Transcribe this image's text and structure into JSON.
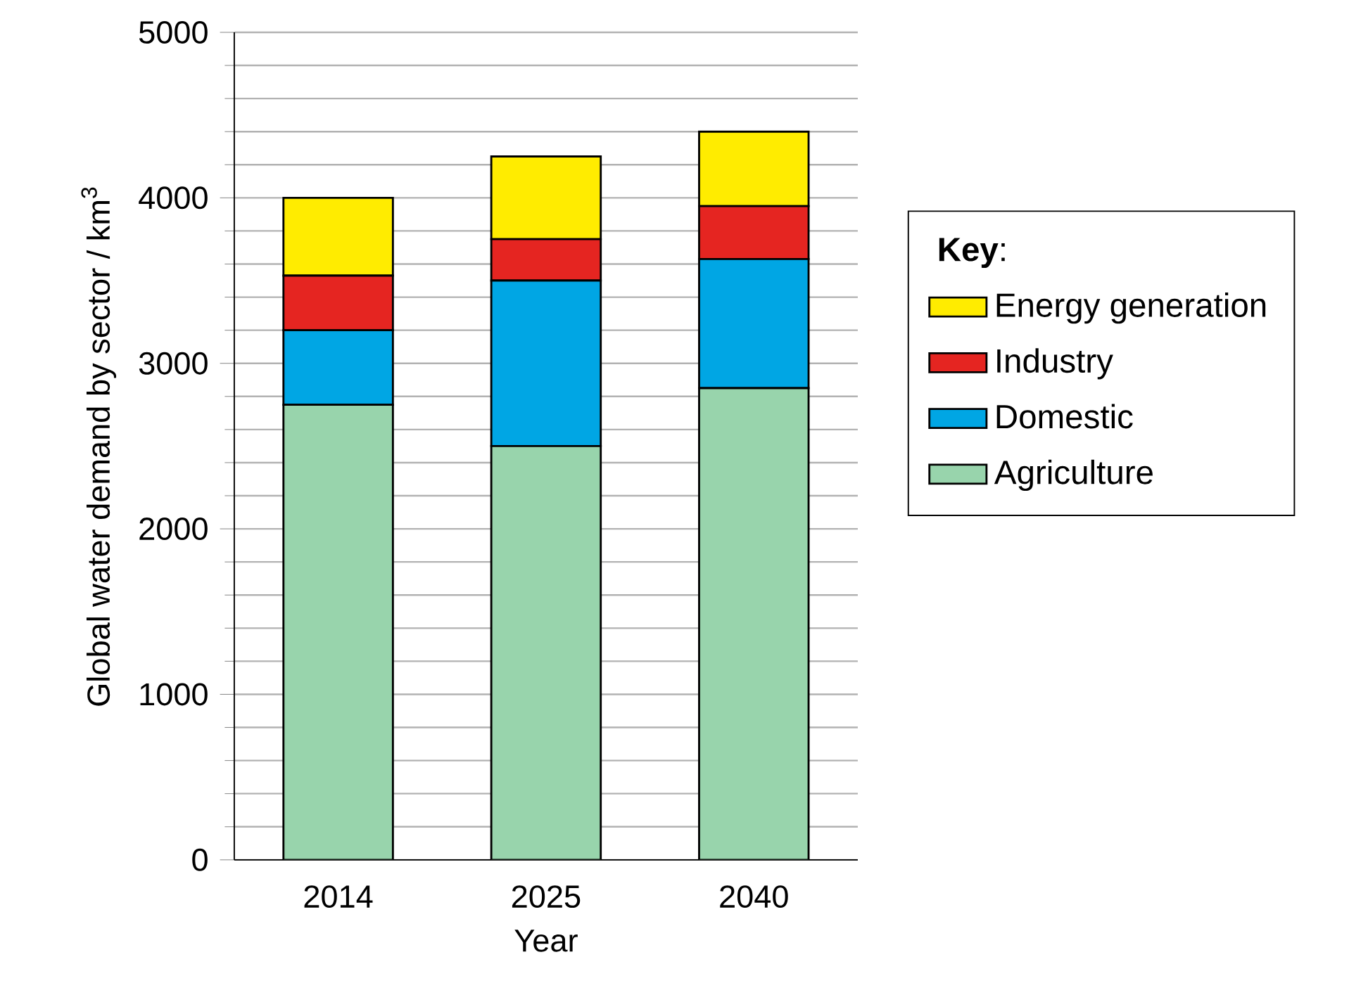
{
  "chart_data": {
    "type": "bar",
    "stacked": true,
    "xlabel": "Year",
    "ylabel": "Global water demand by sector / km$^{3}$",
    "legend_title": "**Key**:",
    "legend": "right",
    "grid": "y",
    "categories": [
      "2014",
      "2025",
      "2040"
    ],
    "ylim": [
      0,
      5000
    ],
    "yticks": [
      0,
      1000,
      2000,
      3000,
      4000,
      5000
    ],
    "series": [
      {
        "name": "Agriculture",
        "color": "#98d4ac",
        "values": [
          2750,
          2500,
          2850
        ]
      },
      {
        "name": "Domestic",
        "color": "#00a6e4",
        "values": [
          450,
          1000,
          780
        ]
      },
      {
        "name": "Industry",
        "color": "#e52521",
        "values": [
          330,
          250,
          320
        ]
      },
      {
        "name": "Energy generation",
        "color": "#ffec00",
        "values": [
          470,
          500,
          450
        ]
      }
    ]
  }
}
